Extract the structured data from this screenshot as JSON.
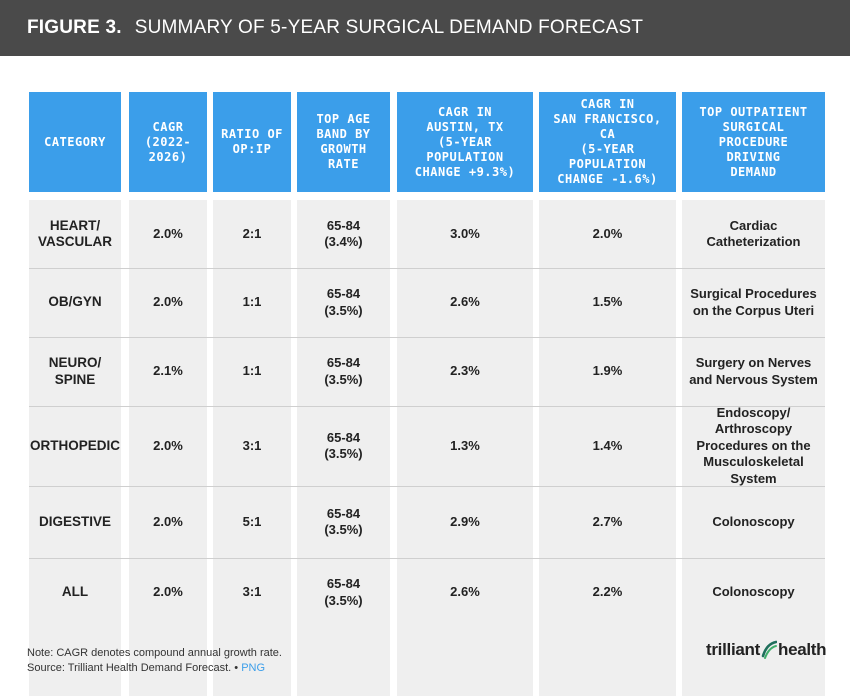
{
  "banner": {
    "figure_label": "FIGURE 3.",
    "title": "SUMMARY OF 5-YEAR SURGICAL DEMAND FORECAST"
  },
  "chart_data": {
    "type": "table",
    "title": "SUMMARY OF 5-YEAR SURGICAL DEMAND FORECAST",
    "columns": [
      "CATEGORY",
      "CAGR\n(2022-\n2026)",
      "RATIO OF\nOP:IP",
      "TOP AGE\nBAND BY\nGROWTH\nRATE",
      "CAGR IN\nAUSTIN, TX\n(5-YEAR\nPOPULATION\nCHANGE +9.3%)",
      "CAGR IN\nSAN FRANCISCO,\nCA\n(5-YEAR\nPOPULATION\nCHANGE -1.6%)",
      "TOP OUTPATIENT\nSURGICAL\nPROCEDURE\nDRIVING\nDEMAND"
    ],
    "rows": [
      [
        "HEART/\nVASCULAR",
        "2.0%",
        "2:1",
        "65-84\n(3.4%)",
        "3.0%",
        "2.0%",
        "Cardiac\nCatheterization"
      ],
      [
        "OB/GYN",
        "2.0%",
        "1:1",
        "65-84\n(3.5%)",
        "2.6%",
        "1.5%",
        "Surgical Procedures\non the Corpus Uteri"
      ],
      [
        "NEURO/\nSPINE",
        "2.1%",
        "1:1",
        "65-84\n(3.5%)",
        "2.3%",
        "1.9%",
        "Surgery on Nerves\nand Nervous System"
      ],
      [
        "ORTHOPEDIC",
        "2.0%",
        "3:1",
        "65-84\n(3.5%)",
        "1.3%",
        "1.4%",
        "Endoscopy/\nArthroscopy\nProcedures on the\nMusculoskeletal\nSystem"
      ],
      [
        "DIGESTIVE",
        "2.0%",
        "5:1",
        "65-84\n(3.5%)",
        "2.9%",
        "2.7%",
        "Colonoscopy"
      ],
      [
        "ALL",
        "2.0%",
        "3:1",
        "65-84\n(3.5%)",
        "2.6%",
        "2.2%",
        "Colonoscopy"
      ]
    ]
  },
  "footer": {
    "note": "Note: CAGR denotes compound annual growth rate.",
    "source": "Source: Trilliant Health Demand Forecast.",
    "separator": "•",
    "png_link": "PNG"
  },
  "logo": {
    "left_text": "trilliant",
    "right_text": "health",
    "colors": {
      "swoosh_dark": "#1f6f5c",
      "swoosh_light": "#3fae6b"
    }
  },
  "colors": {
    "banner_bg": "#4a4a4a",
    "header_bg": "#3b9eea",
    "cell_bg": "#efefef",
    "link": "#3b9eea"
  }
}
